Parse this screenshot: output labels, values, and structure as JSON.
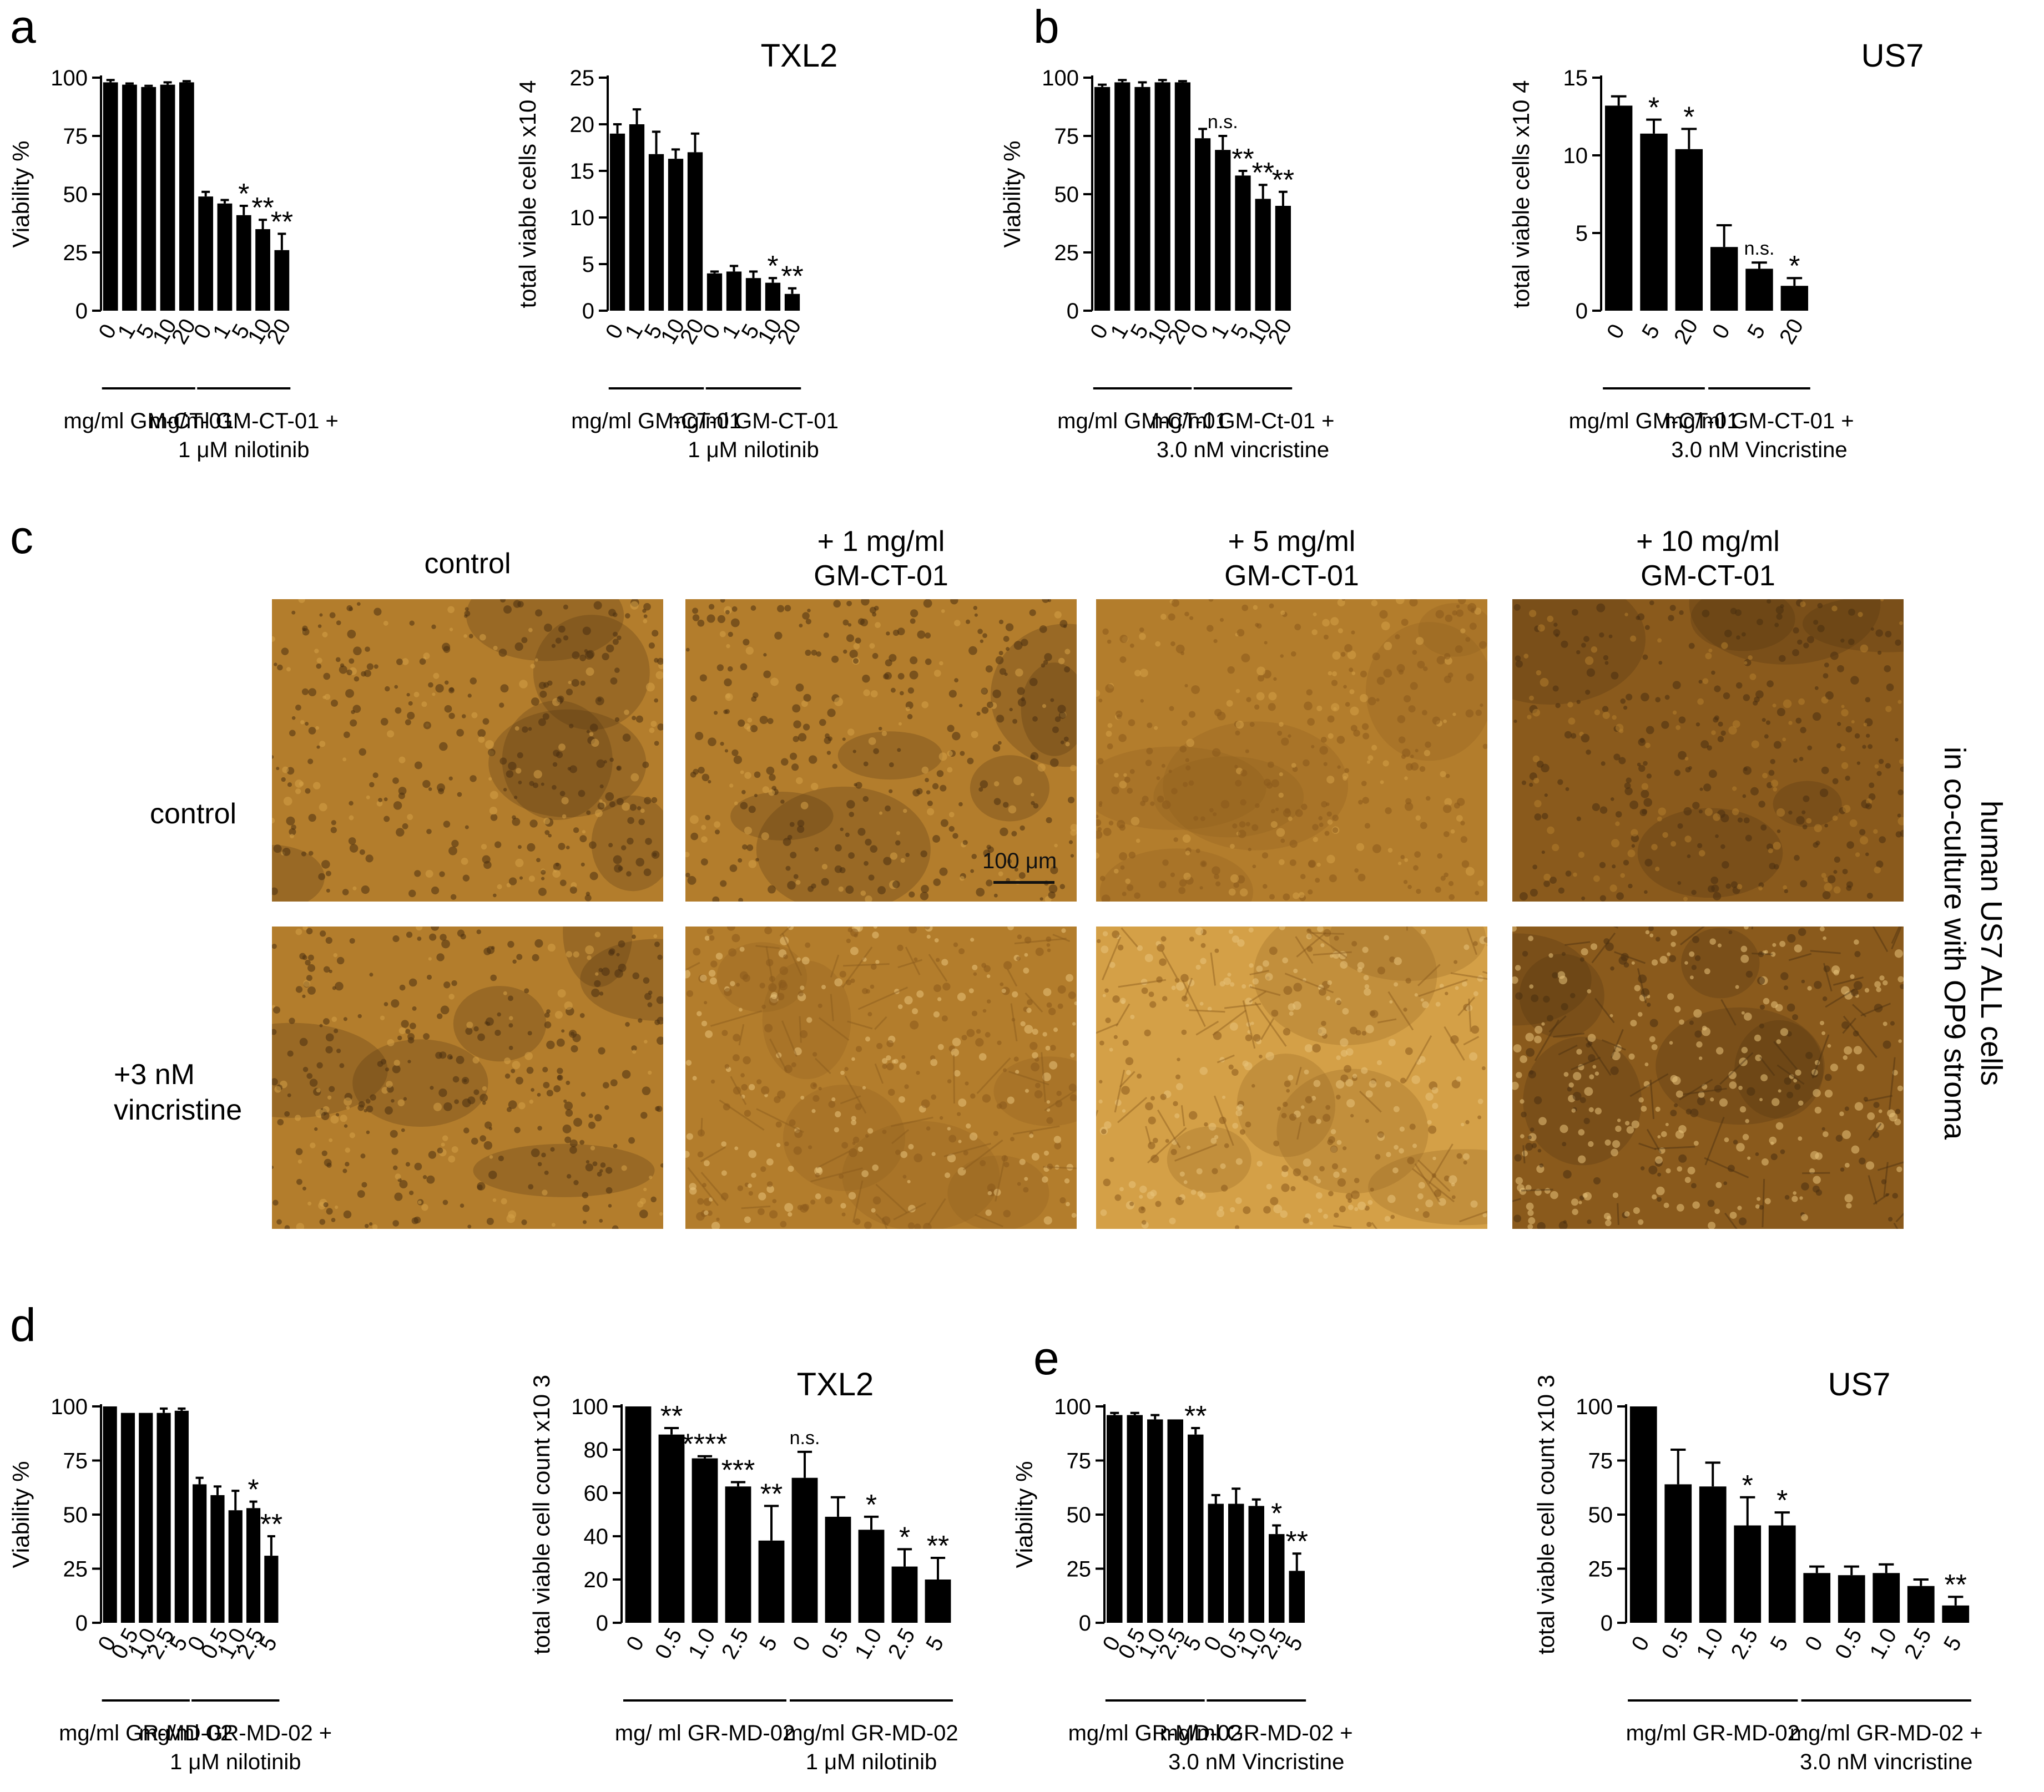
{
  "panels": {
    "a": "a",
    "b": "b",
    "c": "c",
    "d": "d",
    "e": "e"
  },
  "chart_data": [
    {
      "id": "a1",
      "type": "bar",
      "title": "",
      "ylabel": "Viability %",
      "xlabel": "",
      "ylim": [
        0,
        100
      ],
      "yticks": [
        0,
        25,
        50,
        75,
        100
      ],
      "tick_labels": [
        "0",
        "25",
        "50",
        "75",
        "100"
      ],
      "categories": [
        "0",
        "1",
        "5",
        "10",
        "20",
        "0",
        "1",
        "5",
        "10",
        "20"
      ],
      "values": [
        98,
        97,
        96,
        97,
        98,
        49,
        46,
        41,
        35,
        26
      ],
      "errors": [
        1,
        0.5,
        0.5,
        1,
        0.5,
        2,
        1.5,
        4,
        4,
        7
      ],
      "annotations": [
        "",
        "",
        "",
        "",
        "",
        "",
        "",
        "*",
        "**",
        "**"
      ],
      "group_ranges": [
        [
          0,
          4
        ],
        [
          5,
          9
        ]
      ],
      "group_labels": [
        [
          "mg/ml GM-CT-01"
        ],
        [
          "mg/ml GM-CT-01 +",
          "1 μM nilotinib"
        ]
      ]
    },
    {
      "id": "a2",
      "type": "bar",
      "title": "TXL2",
      "ylabel": "total viable cells x10 4",
      "xlabel": "",
      "ylim": [
        0,
        25
      ],
      "yticks": [
        0,
        5,
        10,
        15,
        20,
        25
      ],
      "tick_labels": [
        "0",
        "5",
        "10",
        "15",
        "20",
        "25"
      ],
      "categories": [
        "0",
        "1",
        "5",
        "10",
        "20",
        "0",
        "1",
        "5",
        "10",
        "20"
      ],
      "values": [
        19,
        20,
        16.8,
        16.3,
        17,
        4,
        4.2,
        3.5,
        3,
        1.8
      ],
      "errors": [
        1,
        1.6,
        2.4,
        1,
        2,
        0.2,
        0.6,
        0.7,
        0.5,
        0.6
      ],
      "annotations": [
        "",
        "",
        "",
        "",
        "",
        "",
        "",
        "",
        "*",
        "**"
      ],
      "group_ranges": [
        [
          0,
          4
        ],
        [
          5,
          9
        ]
      ],
      "group_labels": [
        [
          "mg/ml GM-CT-01"
        ],
        [
          "mg/ml GM-CT-01",
          "1 μM  nilotinib"
        ]
      ]
    },
    {
      "id": "b1",
      "type": "bar",
      "title": "",
      "ylabel": "Viability %",
      "xlabel": "",
      "ylim": [
        0,
        100
      ],
      "yticks": [
        0,
        25,
        50,
        75,
        100
      ],
      "tick_labels": [
        "0",
        "25",
        "50",
        "75",
        "100"
      ],
      "categories": [
        "0",
        "1",
        "5",
        "10",
        "20",
        "0",
        "1",
        "5",
        "10",
        "20"
      ],
      "values": [
        96,
        98,
        96,
        98,
        98,
        74,
        69,
        58,
        48,
        45
      ],
      "errors": [
        1,
        1,
        2,
        1,
        0.5,
        4,
        6,
        2,
        6,
        6
      ],
      "annotations": [
        "",
        "",
        "",
        "",
        "",
        "",
        "n.s.",
        "**",
        "**",
        "**"
      ],
      "group_ranges": [
        [
          0,
          4
        ],
        [
          5,
          9
        ]
      ],
      "group_labels": [
        [
          "mg/ml GM-CT-01"
        ],
        [
          "mg/ml GM-Ct-01 +",
          "3.0 nM vincristine"
        ]
      ]
    },
    {
      "id": "b2",
      "type": "bar",
      "title": "US7",
      "ylabel": "total viable cells x10 4",
      "xlabel": "",
      "ylim": [
        0,
        15
      ],
      "yticks": [
        0,
        5,
        10,
        15
      ],
      "tick_labels": [
        "0",
        "5",
        "10",
        "15"
      ],
      "categories": [
        "0",
        "5",
        "20",
        "0",
        "5",
        "20"
      ],
      "values": [
        13.2,
        11.4,
        10.4,
        4.1,
        2.7,
        1.6
      ],
      "errors": [
        0.6,
        0.9,
        1.3,
        1.4,
        0.4,
        0.5
      ],
      "annotations": [
        "",
        "*",
        "*",
        "",
        "n.s.",
        "*"
      ],
      "group_ranges": [
        [
          0,
          2
        ],
        [
          3,
          5
        ]
      ],
      "group_labels": [
        [
          "mg/ml GM-CT-01"
        ],
        [
          "mg/ml GM-CT-01 +",
          "3.0 nM Vincristine"
        ]
      ]
    },
    {
      "id": "d1",
      "type": "bar",
      "title": "",
      "ylabel": "Viability %",
      "xlabel": "",
      "ylim": [
        0,
        100
      ],
      "yticks": [
        0,
        25,
        50,
        75,
        100
      ],
      "tick_labels": [
        "0",
        "25",
        "50",
        "75",
        "100"
      ],
      "categories": [
        "0",
        "0.5",
        "1.0",
        "2.5",
        "5",
        "0",
        "0.5",
        "1.0",
        "2.5",
        "5"
      ],
      "values": [
        100,
        97,
        97,
        97,
        98,
        64,
        59,
        52,
        53,
        31
      ],
      "errors": [
        0,
        0,
        0,
        2,
        1,
        3,
        4,
        9,
        3,
        9
      ],
      "annotations": [
        "",
        "",
        "",
        "",
        "",
        "",
        "",
        "",
        "*",
        "**"
      ],
      "group_ranges": [
        [
          0,
          4
        ],
        [
          5,
          9
        ]
      ],
      "group_labels": [
        [
          "mg/ml GR-MD-02"
        ],
        [
          "mg/ml GR-MD-02 +",
          "1 μM nilotinib"
        ]
      ]
    },
    {
      "id": "d2",
      "type": "bar",
      "title": "TXL2",
      "ylabel": "total viable cell count x10 3",
      "xlabel": "",
      "ylim": [
        0,
        100
      ],
      "yticks": [
        0,
        20,
        40,
        60,
        80,
        100
      ],
      "tick_labels": [
        "0",
        "20",
        "40",
        "60",
        "80",
        "100"
      ],
      "categories": [
        "0",
        "0.5",
        "1.0",
        "2.5",
        "5",
        "0",
        "0.5",
        "1.0",
        "2.5",
        "5"
      ],
      "values": [
        100,
        87,
        76,
        63,
        38,
        67,
        49,
        43,
        26,
        20
      ],
      "errors": [
        0,
        3,
        1,
        2,
        16,
        12,
        9,
        6,
        8,
        10
      ],
      "annotations": [
        "",
        "**",
        "****",
        "***",
        "**",
        "n.s.",
        "",
        "*",
        "*",
        "**"
      ],
      "group_ranges": [
        [
          0,
          4
        ],
        [
          5,
          9
        ]
      ],
      "group_labels": [
        [
          "mg/ ml GR-MD-02"
        ],
        [
          "mg/ml GR-MD-02",
          "1 μM nilotinib"
        ]
      ]
    },
    {
      "id": "e1",
      "type": "bar",
      "title": "",
      "ylabel": "Viability %",
      "xlabel": "",
      "ylim": [
        0,
        100
      ],
      "yticks": [
        0,
        25,
        50,
        75,
        100
      ],
      "tick_labels": [
        "0",
        "25",
        "50",
        "75",
        "100"
      ],
      "categories": [
        "0",
        "0.5",
        "1.0",
        "2.5",
        "5",
        "0",
        "0.5",
        "1.0",
        "2.5",
        "5"
      ],
      "values": [
        96,
        96,
        94,
        94,
        87,
        55,
        55,
        54,
        41,
        24
      ],
      "errors": [
        1,
        1,
        2,
        0,
        3,
        4,
        7,
        3,
        4,
        8
      ],
      "annotations": [
        "",
        "",
        "",
        "",
        "**",
        "",
        "",
        "",
        "*",
        "**"
      ],
      "group_ranges": [
        [
          0,
          4
        ],
        [
          5,
          9
        ]
      ],
      "group_labels": [
        [
          "mg/ml GR-MD-02"
        ],
        [
          "mg/ml GR-MD-02 +",
          "3.0 nM Vincristine"
        ]
      ]
    },
    {
      "id": "e2",
      "type": "bar",
      "title": "US7",
      "ylabel": "total viable cell count x10 3",
      "xlabel": "",
      "ylim": [
        0,
        100
      ],
      "yticks": [
        0,
        25,
        50,
        75,
        100
      ],
      "tick_labels": [
        "0",
        "25",
        "50",
        "75",
        "100"
      ],
      "categories": [
        "0",
        "0.5",
        "1.0",
        "2.5",
        "5",
        "0",
        "0.5",
        "1.0",
        "2.5",
        "5"
      ],
      "values": [
        100,
        64,
        63,
        45,
        45,
        23,
        22,
        23,
        17,
        8
      ],
      "errors": [
        0,
        16,
        11,
        13,
        6,
        3,
        4,
        4,
        3,
        4
      ],
      "annotations": [
        "",
        "",
        "",
        "*",
        "*",
        "",
        "",
        "",
        "",
        "**"
      ],
      "group_ranges": [
        [
          0,
          4
        ],
        [
          5,
          9
        ]
      ],
      "group_labels": [
        [
          "mg/ml GR-MD-02"
        ],
        [
          "mg/ml GR-MD-02 +",
          "3.0 nM vincristine"
        ]
      ]
    }
  ],
  "micrographs": {
    "columns": [
      "control",
      "+ 1 mg/ml\nGM-CT-01",
      "+ 5 mg/ml\nGM-CT-01",
      "+ 10 mg/ml\nGM-CT-01"
    ],
    "rows": [
      "control",
      "+3 nM\nvincristine"
    ],
    "side_label": "human US7 ALL cells\nin co-culture with OP9 stroma",
    "scale_bar": "100 μm",
    "colors": {
      "dense": "#8a5a1c",
      "mid": "#b37d2c",
      "light": "#d4a047",
      "pale": "#e8c37a",
      "dark": "#4a3010"
    }
  }
}
